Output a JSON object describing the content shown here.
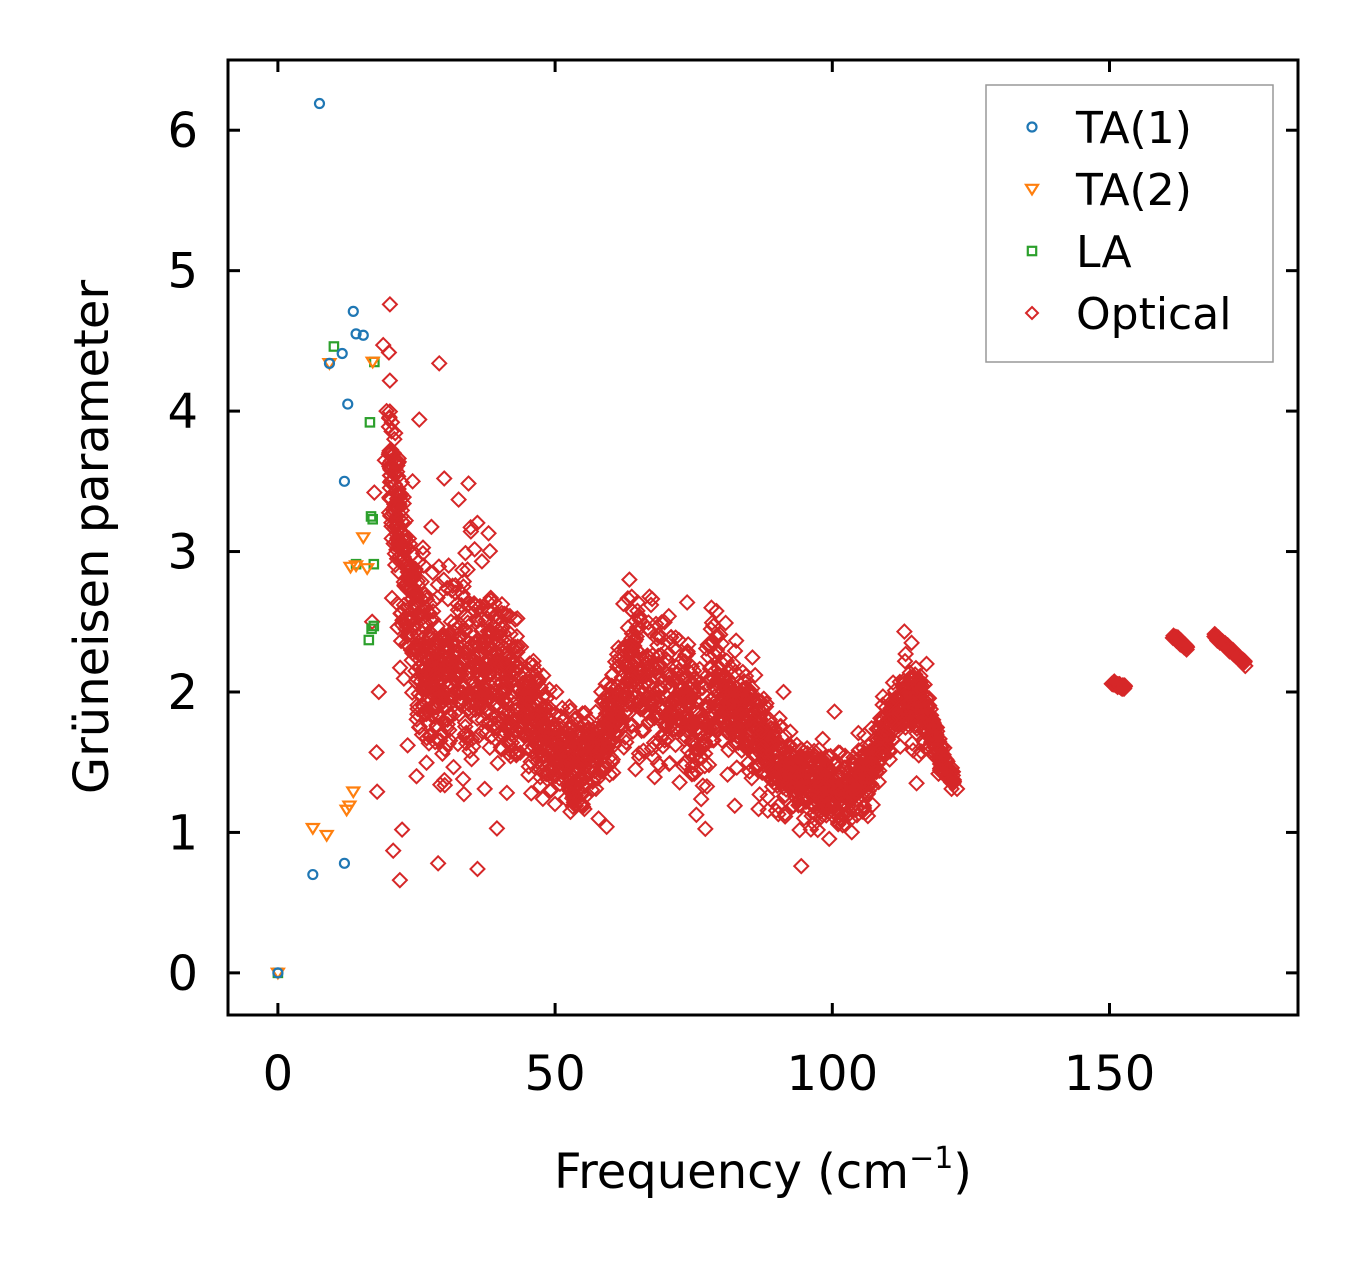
{
  "chart_data": {
    "type": "scatter",
    "title": "",
    "xlabel": "Frequency (cm",
    "xlabel_sup": "−1",
    "xlabel_close": ")",
    "ylabel": "Grüneisen parameter",
    "xlim": [
      -9,
      184
    ],
    "ylim": [
      -0.3,
      6.5
    ],
    "xticks": [
      0,
      50,
      100,
      150
    ],
    "xtick_labels": [
      "0",
      "50",
      "100",
      "150"
    ],
    "yticks": [
      0,
      1,
      2,
      3,
      4,
      5,
      6
    ],
    "ytick_labels": [
      "0",
      "1",
      "2",
      "3",
      "4",
      "5",
      "6"
    ],
    "legend_position": "top-right",
    "series": [
      {
        "name": "TA(1)",
        "marker": "circle",
        "color": "#1f77b4",
        "points": [
          [
            0,
            0
          ],
          [
            6.3,
            0.7
          ],
          [
            7.5,
            6.19
          ],
          [
            9.3,
            4.34
          ],
          [
            11.6,
            4.41
          ],
          [
            12.0,
            3.5
          ],
          [
            12.0,
            0.78
          ],
          [
            12.6,
            4.05
          ],
          [
            13.6,
            4.71
          ],
          [
            14.1,
            4.55
          ],
          [
            15.4,
            4.54
          ]
        ]
      },
      {
        "name": "TA(2)",
        "marker": "triangle-down",
        "color": "#ff7f0e",
        "points": [
          [
            0,
            0
          ],
          [
            6.3,
            1.03
          ],
          [
            8.8,
            0.98
          ],
          [
            9.3,
            4.34
          ],
          [
            12.4,
            1.16
          ],
          [
            12.9,
            1.19
          ],
          [
            13.1,
            2.89
          ],
          [
            13.6,
            1.29
          ],
          [
            14.1,
            2.9
          ],
          [
            15.4,
            3.1
          ],
          [
            16.1,
            2.88
          ],
          [
            17.1,
            4.35
          ]
        ]
      },
      {
        "name": "LA",
        "marker": "square",
        "color": "#2ca02c",
        "points": [
          [
            0,
            0
          ],
          [
            10.1,
            4.46
          ],
          [
            14.1,
            2.91
          ],
          [
            16.4,
            2.37
          ],
          [
            16.6,
            3.92
          ],
          [
            16.8,
            3.25
          ],
          [
            16.9,
            2.45
          ],
          [
            17.1,
            3.23
          ],
          [
            17.3,
            2.91
          ],
          [
            17.3,
            2.47
          ],
          [
            17.4,
            4.35
          ]
        ]
      },
      {
        "name": "Optical",
        "marker": "diamond",
        "color": "#d62728",
        "points": [
          [
            17.0,
            2.5
          ],
          [
            17.4,
            3.42
          ],
          [
            17.8,
            1.57
          ],
          [
            17.9,
            1.29
          ],
          [
            18.2,
            2.0
          ],
          [
            19.0,
            4.47
          ],
          [
            19.3,
            3.65
          ],
          [
            19.6,
            4.0
          ],
          [
            20.2,
            4.76
          ],
          [
            20.8,
            0.87
          ],
          [
            21.0,
            3.8
          ],
          [
            21.4,
            3.3
          ],
          [
            21.6,
            2.46
          ],
          [
            22.0,
            0.66
          ],
          [
            22.4,
            1.02
          ],
          [
            22.8,
            3.0
          ],
          [
            23.4,
            1.62
          ],
          [
            24.3,
            3.5
          ],
          [
            25.0,
            1.4
          ],
          [
            25.5,
            3.94
          ],
          [
            26.3,
            2.9
          ],
          [
            27.4,
            2.4
          ],
          [
            28.9,
            0.78
          ],
          [
            29.1,
            4.34
          ],
          [
            29.3,
            1.34
          ],
          [
            30.0,
            3.52
          ],
          [
            30.8,
            2.9
          ],
          [
            32.6,
            3.37
          ],
          [
            33.4,
            1.38
          ],
          [
            34.6,
            1.58
          ],
          [
            36.0,
            0.74
          ],
          [
            36.8,
            2.93
          ],
          [
            37.3,
            1.31
          ],
          [
            38.0,
            3.13
          ],
          [
            39.3,
            2.55
          ],
          [
            43.0,
            1.55
          ],
          [
            45.2,
            1.41
          ],
          [
            46.1,
            2.22
          ],
          [
            50.2,
            2.0
          ],
          [
            55.0,
            1.34
          ],
          [
            59.3,
            1.04
          ],
          [
            63.4,
            2.8
          ],
          [
            64.5,
            1.45
          ],
          [
            67.3,
            2.62
          ],
          [
            78.2,
            2.6
          ],
          [
            79.2,
            2.3
          ],
          [
            82.4,
            1.19
          ],
          [
            86.5,
            1.86
          ],
          [
            91.2,
            2.0
          ],
          [
            94.4,
            0.76
          ],
          [
            100.4,
            1.86
          ],
          [
            105.6,
            1.6
          ],
          [
            106.5,
            1.43
          ],
          [
            113.0,
            2.43
          ],
          [
            114.3,
            2.35
          ],
          [
            115.2,
            1.35
          ],
          [
            117.0,
            2.2
          ],
          [
            120.0,
            1.55
          ],
          [
            121.8,
            1.35
          ],
          [
            122.5,
            1.31
          ]
        ]
      }
    ],
    "optical_dense": {
      "band_trend": [
        [
          20,
          3.75
        ],
        [
          22,
          3.1
        ],
        [
          24,
          2.55
        ],
        [
          27,
          2.15
        ],
        [
          30,
          2.05
        ],
        [
          34,
          2.3
        ],
        [
          38,
          2.15
        ],
        [
          42,
          1.95
        ],
        [
          46,
          1.8
        ],
        [
          50,
          1.6
        ],
        [
          54,
          1.45
        ],
        [
          58,
          1.6
        ],
        [
          62,
          2.0
        ],
        [
          64,
          2.25
        ],
        [
          66,
          2.1
        ],
        [
          70,
          1.95
        ],
        [
          74,
          1.9
        ],
        [
          77,
          1.65
        ],
        [
          79,
          2.1
        ],
        [
          82,
          1.95
        ],
        [
          86,
          1.75
        ],
        [
          90,
          1.5
        ],
        [
          94,
          1.35
        ],
        [
          98,
          1.35
        ],
        [
          102,
          1.25
        ],
        [
          106,
          1.4
        ],
        [
          110,
          1.75
        ],
        [
          114,
          1.95
        ],
        [
          117,
          1.85
        ],
        [
          120,
          1.5
        ],
        [
          122,
          1.35
        ]
      ],
      "band_halfwidth": [
        [
          20,
          0.45
        ],
        [
          26,
          0.6
        ],
        [
          34,
          0.7
        ],
        [
          42,
          0.5
        ],
        [
          50,
          0.3
        ],
        [
          58,
          0.3
        ],
        [
          64,
          0.45
        ],
        [
          70,
          0.45
        ],
        [
          78,
          0.4
        ],
        [
          86,
          0.3
        ],
        [
          94,
          0.25
        ],
        [
          102,
          0.25
        ],
        [
          110,
          0.2
        ],
        [
          116,
          0.25
        ],
        [
          122,
          0.05
        ]
      ],
      "point_count": 2600,
      "segments": [
        [
          150.5,
          152.8,
          2.07,
          2.03,
          30
        ],
        [
          161.5,
          164.0,
          2.4,
          2.31,
          40
        ],
        [
          169.0,
          174.5,
          2.4,
          2.2,
          70
        ]
      ]
    }
  }
}
